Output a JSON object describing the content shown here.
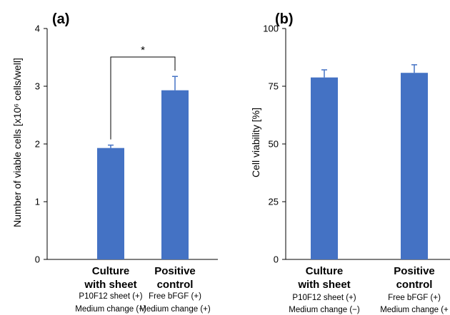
{
  "colors": {
    "bar": "#4472c4",
    "axis": "#000000"
  },
  "chart_data": [
    {
      "type": "bar",
      "panel": "(a)",
      "title": "",
      "xlabel": "",
      "ylabel": "Number  of viable cells [x10⁶ cells/well]",
      "ylim": [
        0,
        4
      ],
      "yticks": [
        "0",
        "1",
        "2",
        "3",
        "4"
      ],
      "categories": [
        {
          "line1": "Culture",
          "line2": "with sheet",
          "cond1": "P10F12 sheet (+)",
          "cond2": "Medium change (−)"
        },
        {
          "line1": "Positive",
          "line2": "control",
          "cond1": "Free bFGF (+)",
          "cond2": "Medium change (+)"
        }
      ],
      "values": [
        1.93,
        2.93
      ],
      "errors": [
        0.05,
        0.24
      ],
      "significance": "*"
    },
    {
      "type": "bar",
      "panel": "(b)",
      "title": "",
      "xlabel": "",
      "ylabel": "Cell viability [%]",
      "ylim": [
        0,
        100
      ],
      "yticks": [
        "0",
        "25",
        "50",
        "75",
        "100"
      ],
      "categories": [
        {
          "line1": "Culture",
          "line2": "with sheet",
          "cond1": "P10F12 sheet (+)",
          "cond2": "Medium change (−)"
        },
        {
          "line1": "Positive",
          "line2": "control",
          "cond1": "Free bFGF (+)",
          "cond2": "Medium change (+"
        }
      ],
      "values": [
        78.8,
        80.8
      ],
      "errors": [
        3.3,
        3.5
      ]
    }
  ]
}
